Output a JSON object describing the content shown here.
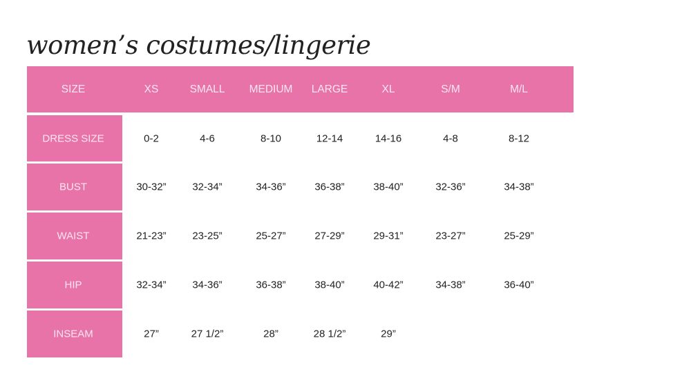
{
  "title": "women’s costumes/lingerie",
  "colors": {
    "accent": "#e873a8",
    "header_text": "#fde6f0",
    "text": "#222222"
  },
  "table": {
    "header": [
      "SIZE",
      "XS",
      "SMALL",
      "MEDIUM",
      "LARGE",
      "XL",
      "S/M",
      "M/L"
    ],
    "rows": [
      {
        "label": "DRESS SIZE",
        "values": [
          "0-2",
          "4-6",
          "8-10",
          "12-14",
          "14-16",
          "4-8",
          "8-12"
        ]
      },
      {
        "label": "BUST",
        "values": [
          "30-32”",
          "32-34”",
          "34-36”",
          "36-38”",
          "38-40”",
          "32-36”",
          "34-38”"
        ]
      },
      {
        "label": "WAIST",
        "values": [
          "21-23”",
          "23-25”",
          "25-27”",
          "27-29”",
          "29-31”",
          "23-27”",
          "25-29”"
        ]
      },
      {
        "label": "HIP",
        "values": [
          "32-34”",
          "34-36”",
          "36-38”",
          "38-40”",
          "40-42”",
          "34-38”",
          "36-40”"
        ]
      },
      {
        "label": "INSEAM",
        "values": [
          "27”",
          "27 1/2”",
          "28”",
          "28 1/2”",
          "29”"
        ]
      }
    ]
  }
}
